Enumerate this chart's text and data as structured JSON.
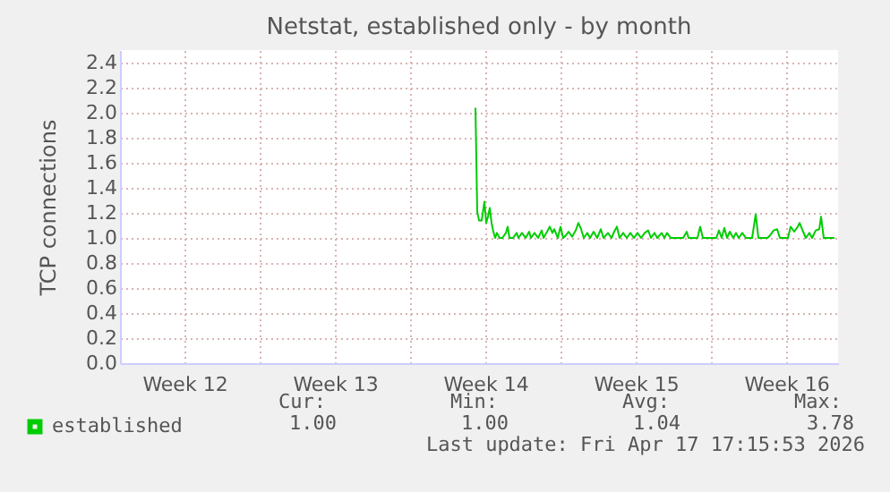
{
  "chart_data": {
    "type": "line",
    "title": "Netstat, established only - by month",
    "ylabel": "TCP connections",
    "xlim": [
      "2026-03-15T12:00",
      "2026-04-17T22:00"
    ],
    "xticks": [
      {
        "value": "2026-03-18T12:00",
        "label": "Week 12"
      },
      {
        "value": "2026-03-22T00:00",
        "label": null
      },
      {
        "value": "2026-03-25T12:00",
        "label": "Week 13"
      },
      {
        "value": "2026-03-29T00:00",
        "label": null
      },
      {
        "value": "2026-04-01T12:00",
        "label": "Week 14"
      },
      {
        "value": "2026-04-05T00:00",
        "label": null
      },
      {
        "value": "2026-04-08T12:00",
        "label": "Week 15"
      },
      {
        "value": "2026-04-12T00:00",
        "label": null
      },
      {
        "value": "2026-04-15T12:00",
        "label": "Week 16"
      }
    ],
    "ylim": [
      0,
      2.5
    ],
    "yticks": [
      {
        "value": 0,
        "label": "0.0"
      },
      0.2,
      0.4,
      0.6,
      0.8,
      {
        "value": 1,
        "label": "1.0"
      },
      1.2,
      1.4,
      1.6,
      1.8,
      {
        "value": 2,
        "label": "2.0"
      },
      2.2,
      2.4
    ],
    "grid": true,
    "legend": "bottom left",
    "x": [
      "2026-04-01T01:00",
      "2026-04-01T03:00",
      "2026-04-01T05:00",
      "2026-04-01T08:00",
      "2026-04-01T11:00",
      "2026-04-01T13:00",
      "2026-04-01T15:00",
      "2026-04-01T17:00",
      "2026-04-01T19:00",
      "2026-04-01T21:00",
      "2026-04-01T23:00",
      "2026-04-02T01:00",
      "2026-04-02T04:00",
      "2026-04-02T07:00",
      "2026-04-02T11:00",
      "2026-04-02T13:00",
      "2026-04-02T15:00",
      "2026-04-02T19:00",
      "2026-04-02T23:00",
      "2026-04-03T01:00",
      "2026-04-03T05:00",
      "2026-04-03T09:00",
      "2026-04-03T13:00",
      "2026-04-03T15:00",
      "2026-04-03T19:00",
      "2026-04-03T23:00",
      "2026-04-04T03:00",
      "2026-04-04T05:00",
      "2026-04-04T09:00",
      "2026-04-04T12:00",
      "2026-04-04T15:00",
      "2026-04-04T17:00",
      "2026-04-04T21:00",
      "2026-04-05T00:00",
      "2026-04-05T03:00",
      "2026-04-05T06:00",
      "2026-04-05T09:00",
      "2026-04-05T13:00",
      "2026-04-05T17:00",
      "2026-04-05T20:00",
      "2026-04-05T23:00",
      "2026-04-06T02:00",
      "2026-04-06T06:00",
      "2026-04-06T09:00",
      "2026-04-06T13:00",
      "2026-04-06T17:00",
      "2026-04-06T21:00",
      "2026-04-07T00:00",
      "2026-04-07T05:00",
      "2026-04-07T09:00",
      "2026-04-07T12:00",
      "2026-04-07T15:00",
      "2026-04-07T18:00",
      "2026-04-07T22:00",
      "2026-04-08T02:00",
      "2026-04-08T06:00",
      "2026-04-08T10:00",
      "2026-04-08T14:00",
      "2026-04-08T18:00",
      "2026-04-08T22:00",
      "2026-04-09T02:00",
      "2026-04-09T05:00",
      "2026-04-09T09:00",
      "2026-04-09T12:00",
      "2026-04-09T17:00",
      "2026-04-09T20:00",
      "2026-04-09T23:00",
      "2026-04-10T03:00",
      "2026-04-10T17:00",
      "2026-04-10T21:00",
      "2026-04-10T23:00",
      "2026-04-11T09:00",
      "2026-04-11T12:00",
      "2026-04-11T15:00",
      "2026-04-12T06:00",
      "2026-04-12T09:00",
      "2026-04-12T12:00",
      "2026-04-12T15:00",
      "2026-04-12T18:00",
      "2026-04-12T21:00",
      "2026-04-13T01:00",
      "2026-04-13T04:00",
      "2026-04-13T07:00",
      "2026-04-13T11:00",
      "2026-04-13T15:00",
      "2026-04-13T22:00",
      "2026-04-14T02:00",
      "2026-04-14T05:00",
      "2026-04-14T15:00",
      "2026-04-14T18:00",
      "2026-04-14T22:00",
      "2026-04-15T02:00",
      "2026-04-15T05:00",
      "2026-04-15T14:00",
      "2026-04-15T17:00",
      "2026-04-15T21:00",
      "2026-04-16T01:00",
      "2026-04-16T03:00",
      "2026-04-16T07:00",
      "2026-04-16T10:00",
      "2026-04-16T14:00",
      "2026-04-16T17:00",
      "2026-04-16T21:00",
      "2026-04-17T01:00",
      "2026-04-17T03:00",
      "2026-04-17T06:00",
      "2026-04-17T18:00"
    ],
    "series": [
      {
        "name": "established",
        "color": "#00cc00",
        "values": [
          2.04,
          1.21,
          1.14,
          1.14,
          1.29,
          1.12,
          1.17,
          1.24,
          1.12,
          1.05,
          1.0,
          1.04,
          1.0,
          1.0,
          1.04,
          1.09,
          1.0,
          1.0,
          1.04,
          1.0,
          1.04,
          1.0,
          1.05,
          1.0,
          1.04,
          1.0,
          1.06,
          1.0,
          1.05,
          1.09,
          1.04,
          1.07,
          1.0,
          1.09,
          1.0,
          1.02,
          1.05,
          1.01,
          1.06,
          1.12,
          1.07,
          1.0,
          1.04,
          1.0,
          1.05,
          1.0,
          1.07,
          1.0,
          1.04,
          1.0,
          1.05,
          1.09,
          1.0,
          1.04,
          1.0,
          1.04,
          1.0,
          1.04,
          1.0,
          1.04,
          1.06,
          1.0,
          1.04,
          1.0,
          1.04,
          1.0,
          1.04,
          1.0,
          1.0,
          1.05,
          1.0,
          1.0,
          1.09,
          1.0,
          1.0,
          1.06,
          1.0,
          1.08,
          1.0,
          1.05,
          1.0,
          1.04,
          1.0,
          1.04,
          1.0,
          1.0,
          1.19,
          1.0,
          1.0,
          1.02,
          1.06,
          1.07,
          1.0,
          1.0,
          1.09,
          1.05,
          1.09,
          1.12,
          1.05,
          1.0,
          1.04,
          1.0,
          1.06,
          1.07,
          1.17,
          1.0,
          1.0
        ]
      }
    ],
    "annotations": [
      "Cur:",
      "1.00",
      "Min:",
      "1.00",
      "Avg:",
      "1.04",
      "Max:",
      "3.78",
      "Last update: Fri Apr 17 17:15:53 2026"
    ]
  }
}
